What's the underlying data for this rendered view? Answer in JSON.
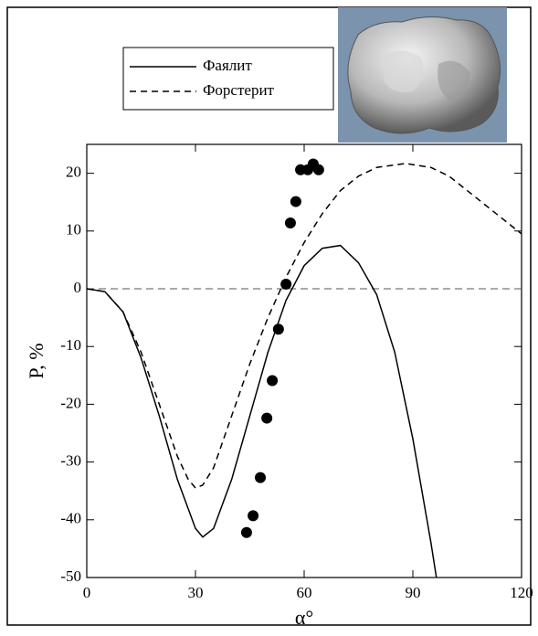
{
  "chart_data": {
    "type": "line",
    "xlabel": "α°",
    "ylabel": "P, %",
    "xlim": [
      0,
      120
    ],
    "ylim": [
      -50,
      25
    ],
    "xticks": [
      0,
      30,
      60,
      90,
      120
    ],
    "yticks": [
      -50,
      -40,
      -30,
      -20,
      -10,
      0,
      10,
      20
    ],
    "reference_line": 0,
    "legend": "upper left",
    "series": [
      {
        "name": "Фаялит",
        "color": "#000000",
        "dash": false,
        "x": [
          0,
          5,
          10,
          15,
          20,
          25,
          30,
          32,
          35,
          40,
          45,
          50,
          55,
          60,
          65,
          70,
          75,
          80,
          85,
          90,
          95,
          96.5
        ],
        "values": [
          0,
          -0.5,
          -4,
          -12,
          -22,
          -33,
          -41.5,
          -43,
          -41.5,
          -33,
          -22,
          -11,
          -2,
          4,
          7,
          7.5,
          4.5,
          -1,
          -11,
          -26,
          -44,
          -50
        ]
      },
      {
        "name": "Форстерит",
        "color": "#000000",
        "dash": true,
        "x": [
          0,
          5,
          10,
          15,
          20,
          25,
          28,
          30,
          32,
          35,
          40,
          45,
          50,
          55,
          60,
          65,
          70,
          75,
          80,
          88,
          95,
          100,
          105,
          110,
          115,
          120
        ],
        "values": [
          0,
          -0.5,
          -4,
          -11,
          -20,
          -29,
          -33,
          -34.5,
          -34,
          -31,
          -22,
          -13,
          -5,
          2,
          8,
          13,
          17,
          19.5,
          21,
          21.7,
          21,
          19.5,
          17,
          14.5,
          12,
          9.5
        ]
      }
    ],
    "points": {
      "color": "#000000",
      "x": [
        44.1,
        45.9,
        47.9,
        49.7,
        51.2,
        52.9,
        55,
        56.2,
        57.7,
        59,
        61,
        62.5,
        64
      ],
      "values": [
        -42.2,
        -39.3,
        -32.7,
        -22.4,
        -15.9,
        -7,
        0.8,
        11.4,
        15.1,
        20.6,
        20.6,
        21.6,
        20.6
      ]
    }
  }
}
